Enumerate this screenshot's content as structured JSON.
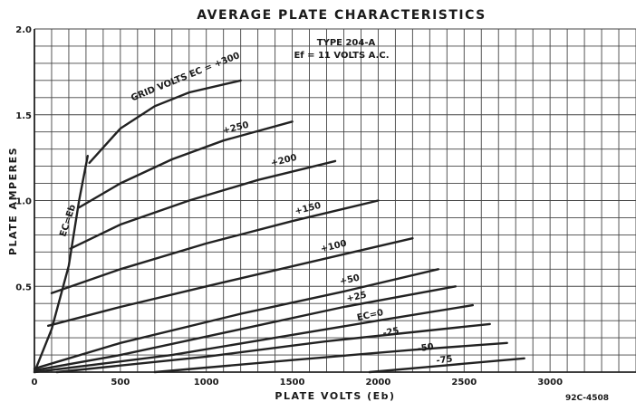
{
  "chart_data": {
    "type": "line",
    "title": "AVERAGE PLATE CHARACTERISTICS",
    "xlabel": "PLATE VOLTS (Eb)",
    "ylabel": "PLATE AMPERES",
    "xlim": [
      0,
      3500
    ],
    "ylim": [
      0,
      2.0
    ],
    "x_ticks": [
      {
        "value": 0,
        "label": "0"
      },
      {
        "value": 500,
        "label": "500"
      },
      {
        "value": 1000,
        "label": "1000"
      },
      {
        "value": 1500,
        "label": "1500"
      },
      {
        "value": 2000,
        "label": "2000"
      },
      {
        "value": 2500,
        "label": "2500"
      },
      {
        "value": 3000,
        "label": "3000"
      }
    ],
    "y_ticks": [
      {
        "value": 0.5,
        "label": "0.5"
      },
      {
        "value": 1.0,
        "label": "1.0"
      },
      {
        "value": 1.5,
        "label": "1.5"
      },
      {
        "value": 2.0,
        "label": "2.0"
      }
    ],
    "grid": true,
    "annotations": {
      "type_line1": "TYPE 204-A",
      "type_line2": "Ef = 11 VOLTS A.C.",
      "boundary_label": "EC=Eb",
      "doc_number": "92C-4508"
    },
    "boundary": {
      "name": "EC=Eb",
      "points": [
        [
          0,
          0
        ],
        [
          100,
          0.25
        ],
        [
          200,
          0.62
        ],
        [
          260,
          1.0
        ],
        [
          310,
          1.26
        ]
      ]
    },
    "series": [
      {
        "name": "GRID VOLTS EC = +300",
        "points": [
          [
            320,
            1.22
          ],
          [
            500,
            1.42
          ],
          [
            700,
            1.55
          ],
          [
            900,
            1.63
          ],
          [
            1200,
            1.7
          ]
        ]
      },
      {
        "name": "+250",
        "points": [
          [
            260,
            0.96
          ],
          [
            500,
            1.1
          ],
          [
            800,
            1.24
          ],
          [
            1100,
            1.35
          ],
          [
            1500,
            1.46
          ]
        ]
      },
      {
        "name": "+200",
        "points": [
          [
            210,
            0.72
          ],
          [
            500,
            0.86
          ],
          [
            900,
            1.0
          ],
          [
            1300,
            1.12
          ],
          [
            1750,
            1.23
          ]
        ]
      },
      {
        "name": "+150",
        "points": [
          [
            100,
            0.46
          ],
          [
            500,
            0.6
          ],
          [
            1000,
            0.75
          ],
          [
            1500,
            0.88
          ],
          [
            2000,
            1.0
          ]
        ]
      },
      {
        "name": "+100",
        "points": [
          [
            80,
            0.27
          ],
          [
            500,
            0.38
          ],
          [
            1000,
            0.5
          ],
          [
            1600,
            0.64
          ],
          [
            2200,
            0.78
          ]
        ]
      },
      {
        "name": "+50",
        "points": [
          [
            0,
            0.02
          ],
          [
            500,
            0.17
          ],
          [
            1200,
            0.34
          ],
          [
            1800,
            0.47
          ],
          [
            2350,
            0.6
          ]
        ]
      },
      {
        "name": "+25",
        "points": [
          [
            0,
            0.01
          ],
          [
            500,
            0.1
          ],
          [
            1200,
            0.25
          ],
          [
            1800,
            0.38
          ],
          [
            2450,
            0.5
          ]
        ]
      },
      {
        "name": "EC=0",
        "points": [
          [
            0,
            0.0
          ],
          [
            800,
            0.1
          ],
          [
            1400,
            0.2
          ],
          [
            2000,
            0.3
          ],
          [
            2550,
            0.39
          ]
        ]
      },
      {
        "name": "-25",
        "points": [
          [
            130,
            0.0
          ],
          [
            1000,
            0.09
          ],
          [
            1700,
            0.18
          ],
          [
            2650,
            0.28
          ]
        ]
      },
      {
        "name": "-50",
        "points": [
          [
            700,
            0.0
          ],
          [
            1500,
            0.07
          ],
          [
            2200,
            0.13
          ],
          [
            2750,
            0.17
          ]
        ]
      },
      {
        "name": "-75",
        "points": [
          [
            1950,
            0.0
          ],
          [
            2400,
            0.04
          ],
          [
            2850,
            0.08
          ]
        ]
      }
    ]
  }
}
